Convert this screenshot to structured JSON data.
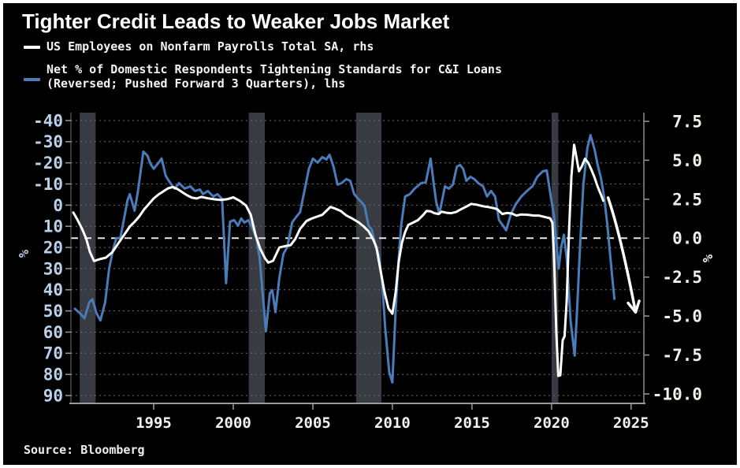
{
  "title": "Tighter Credit Leads to Weaker Jobs Market",
  "source": "Source: Bloomberg",
  "legend": {
    "items": [
      {
        "color": "#ffffff",
        "lines": [
          "US Employees on Nonfarm Payrolls Total SA, rhs"
        ]
      },
      {
        "color": "#4a7cba",
        "lines": [
          "Net % of Domestic Respondents Tightening Standards for C&I Loans",
          "(Reversed; Pushed Forward 3 Quarters), lhs"
        ]
      }
    ]
  },
  "chart_data": {
    "type": "line",
    "title": "Tighter Credit Leads to Weaker Jobs Market",
    "background_color": "#000000",
    "band_color": "#383b41",
    "grid_color": "#6b6b6b",
    "x_axis": {
      "range": [
        1989.8,
        2025.8
      ],
      "ticks": [
        1995,
        2000,
        2005,
        2010,
        2015,
        2020,
        2025
      ],
      "tick_color": "#f2f2f2"
    },
    "left_axis": {
      "label": "%",
      "reversed": true,
      "ticks": [
        -40,
        -30,
        -20,
        -10,
        0,
        10,
        20,
        30,
        40,
        50,
        60,
        70,
        80,
        90
      ],
      "tick_color": "#b9d0e8"
    },
    "right_axis": {
      "label": "%",
      "ticks": [
        "7.5",
        "5.0",
        "2.5",
        "0.0",
        "-2.5",
        "-5.0",
        "-7.5",
        "-10.0"
      ],
      "tick_color": "#f3f0e8"
    },
    "zero_dashed_line_rhs": 0.0,
    "recession_bands": [
      [
        1990.35,
        1991.35
      ],
      [
        2000.97,
        2001.98
      ],
      [
        2007.72,
        2009.31
      ],
      [
        2020.0,
        2020.42
      ]
    ],
    "series": [
      {
        "name": "Net % of Domestic Respondents Tightening Standards for C&I Loans (Reversed; Pushed Forward 3 Quarters)",
        "axis": "lhs",
        "color": "#4a7cba",
        "width": 3,
        "points": [
          [
            1990.05,
            49
          ],
          [
            1990.35,
            51
          ],
          [
            1990.65,
            53.5
          ],
          [
            1990.95,
            46
          ],
          [
            1991.15,
            44.5
          ],
          [
            1991.4,
            51
          ],
          [
            1991.65,
            54.5
          ],
          [
            1991.95,
            46
          ],
          [
            1992.2,
            30
          ],
          [
            1992.45,
            20.9
          ],
          [
            1992.65,
            15.6
          ],
          [
            1992.9,
            15.6
          ],
          [
            1993.1,
            8
          ],
          [
            1993.35,
            -2.2
          ],
          [
            1993.5,
            -5.2
          ],
          [
            1993.8,
            2.6
          ],
          [
            1994.0,
            -6
          ],
          [
            1994.35,
            -25.3
          ],
          [
            1994.6,
            -23.5
          ],
          [
            1994.8,
            -19.5
          ],
          [
            1995.0,
            -17.2
          ],
          [
            1995.25,
            -19.5
          ],
          [
            1995.5,
            -22.1
          ],
          [
            1995.75,
            -14
          ],
          [
            1995.95,
            -11.5
          ],
          [
            1996.3,
            -7.8
          ],
          [
            1996.6,
            -10.4
          ],
          [
            1996.95,
            -7.8
          ],
          [
            1997.3,
            -8.9
          ],
          [
            1997.6,
            -6.7
          ],
          [
            1997.9,
            -7.4
          ],
          [
            1998.1,
            -5.2
          ],
          [
            1998.4,
            -6.7
          ],
          [
            1998.75,
            -4.1
          ],
          [
            1999.0,
            -5.2
          ],
          [
            1999.3,
            -3.0
          ],
          [
            1999.55,
            36.9
          ],
          [
            1999.8,
            7.8
          ],
          [
            2000.05,
            7.1
          ],
          [
            2000.3,
            9.7
          ],
          [
            2000.5,
            6.3
          ],
          [
            2000.7,
            8.2
          ],
          [
            2000.95,
            7.1
          ],
          [
            2001.2,
            10.8
          ],
          [
            2001.45,
            15.6
          ],
          [
            2001.65,
            24.6
          ],
          [
            2001.85,
            41.7
          ],
          [
            2002.05,
            59.6
          ],
          [
            2002.3,
            41.7
          ],
          [
            2002.45,
            40.2
          ],
          [
            2002.65,
            50.6
          ],
          [
            2002.9,
            34.3
          ],
          [
            2003.15,
            23.1
          ],
          [
            2003.4,
            19.7
          ],
          [
            2003.7,
            8.2
          ],
          [
            2003.95,
            5.6
          ],
          [
            2004.2,
            3.3
          ],
          [
            2004.5,
            -7.8
          ],
          [
            2004.75,
            -17.1
          ],
          [
            2005.0,
            -22.0
          ],
          [
            2005.3,
            -20.1
          ],
          [
            2005.6,
            -22.7
          ],
          [
            2005.85,
            -21.6
          ],
          [
            2006.05,
            -23.8
          ],
          [
            2006.3,
            -18.2
          ],
          [
            2006.55,
            -9.7
          ],
          [
            2006.8,
            -10.4
          ],
          [
            2007.1,
            -12.3
          ],
          [
            2007.35,
            -11.5
          ],
          [
            2007.6,
            -5.2
          ],
          [
            2007.85,
            -3.0
          ],
          [
            2008.05,
            -1.5
          ],
          [
            2008.25,
            0.4
          ],
          [
            2008.5,
            9.7
          ],
          [
            2008.7,
            11.5
          ],
          [
            2008.95,
            19.4
          ],
          [
            2009.15,
            23.8
          ],
          [
            2009.35,
            35.8
          ],
          [
            2009.55,
            58.1
          ],
          [
            2009.8,
            79.0
          ],
          [
            2010.0,
            83.8
          ],
          [
            2010.2,
            50
          ],
          [
            2010.35,
            30
          ],
          [
            2010.55,
            9.7
          ],
          [
            2010.8,
            -4.1
          ],
          [
            2011.1,
            -5.2
          ],
          [
            2011.4,
            -7.8
          ],
          [
            2011.8,
            -10.4
          ],
          [
            2012.1,
            -10.8
          ],
          [
            2012.4,
            -22.0
          ],
          [
            2012.6,
            -10
          ],
          [
            2012.75,
            -1.5
          ],
          [
            2012.95,
            4.1
          ],
          [
            2013.3,
            -8.9
          ],
          [
            2013.55,
            -7.8
          ],
          [
            2013.8,
            -9.7
          ],
          [
            2014.05,
            -18.2
          ],
          [
            2014.25,
            -19.0
          ],
          [
            2014.45,
            -17.1
          ],
          [
            2014.65,
            -11.5
          ],
          [
            2014.9,
            -13.4
          ],
          [
            2015.15,
            -12.3
          ],
          [
            2015.4,
            -10.4
          ],
          [
            2015.7,
            -8.9
          ],
          [
            2015.95,
            -4.1
          ],
          [
            2016.2,
            -6.7
          ],
          [
            2016.45,
            -4.1
          ],
          [
            2016.7,
            7.1
          ],
          [
            2016.95,
            9.7
          ],
          [
            2017.15,
            11.9
          ],
          [
            2017.45,
            4.1
          ],
          [
            2017.75,
            -0.4
          ],
          [
            2018.1,
            -4.1
          ],
          [
            2018.45,
            -6.7
          ],
          [
            2018.8,
            -8.9
          ],
          [
            2019.1,
            -13.4
          ],
          [
            2019.45,
            -16.0
          ],
          [
            2019.7,
            -16.4
          ],
          [
            2019.95,
            -4.0
          ],
          [
            2020.15,
            5.0
          ],
          [
            2020.3,
            18.0
          ],
          [
            2020.45,
            30.0
          ],
          [
            2020.6,
            20.0
          ],
          [
            2020.78,
            14.0
          ],
          [
            2020.95,
            25.0
          ],
          [
            2021.2,
            55.0
          ],
          [
            2021.45,
            71.1
          ],
          [
            2021.6,
            50.0
          ],
          [
            2021.8,
            18.0
          ],
          [
            2022.0,
            -10.0
          ],
          [
            2022.25,
            -27.0
          ],
          [
            2022.45,
            -33.1
          ],
          [
            2022.7,
            -26.4
          ],
          [
            2022.9,
            -19.0
          ],
          [
            2023.1,
            -13.0
          ],
          [
            2023.3,
            -4.0
          ],
          [
            2023.5,
            9.0
          ],
          [
            2023.65,
            21.0
          ],
          [
            2023.8,
            33.0
          ],
          [
            2023.95,
            44.3
          ]
        ]
      },
      {
        "name": "US Employees on Nonfarm Payrolls Total SA",
        "axis": "rhs",
        "color": "#ffffff",
        "width": 3,
        "points": [
          [
            1989.95,
            1.65
          ],
          [
            1990.2,
            1.2
          ],
          [
            1990.5,
            0.6
          ],
          [
            1990.75,
            0.0
          ],
          [
            1991.0,
            -0.9
          ],
          [
            1991.25,
            -1.47
          ],
          [
            1991.6,
            -1.35
          ],
          [
            1992.0,
            -1.25
          ],
          [
            1992.4,
            -0.9
          ],
          [
            1992.8,
            -0.3
          ],
          [
            1993.2,
            0.3
          ],
          [
            1993.5,
            0.75
          ],
          [
            1993.8,
            1.05
          ],
          [
            1994.1,
            1.4
          ],
          [
            1994.4,
            1.85
          ],
          [
            1994.7,
            2.2
          ],
          [
            1995.0,
            2.55
          ],
          [
            1995.3,
            2.8
          ],
          [
            1995.6,
            3.0
          ],
          [
            1995.9,
            3.2
          ],
          [
            1996.2,
            3.28
          ],
          [
            1996.5,
            3.15
          ],
          [
            1996.8,
            2.95
          ],
          [
            1997.1,
            2.75
          ],
          [
            1997.4,
            2.6
          ],
          [
            1997.7,
            2.55
          ],
          [
            1998.0,
            2.65
          ],
          [
            1998.4,
            2.56
          ],
          [
            1998.8,
            2.5
          ],
          [
            1999.2,
            2.45
          ],
          [
            1999.6,
            2.5
          ],
          [
            2000.0,
            2.62
          ],
          [
            2000.4,
            2.4
          ],
          [
            2000.8,
            2.1
          ],
          [
            2001.1,
            1.5
          ],
          [
            2001.4,
            0.2
          ],
          [
            2001.7,
            -0.7
          ],
          [
            2002.0,
            -1.3
          ],
          [
            2002.2,
            -1.57
          ],
          [
            2002.5,
            -1.45
          ],
          [
            2002.9,
            -0.6
          ],
          [
            2003.3,
            -0.5
          ],
          [
            2003.6,
            -0.45
          ],
          [
            2003.9,
            -0.05
          ],
          [
            2004.2,
            0.6
          ],
          [
            2004.6,
            1.1
          ],
          [
            2004.9,
            1.25
          ],
          [
            2005.2,
            1.36
          ],
          [
            2005.6,
            1.5
          ],
          [
            2006.1,
            2.0
          ],
          [
            2006.4,
            1.9
          ],
          [
            2006.75,
            1.75
          ],
          [
            2007.1,
            1.46
          ],
          [
            2007.5,
            1.25
          ],
          [
            2007.9,
            1.0
          ],
          [
            2008.2,
            0.75
          ],
          [
            2008.5,
            0.45
          ],
          [
            2008.8,
            -0.1
          ],
          [
            2009.0,
            -0.6
          ],
          [
            2009.2,
            -1.77
          ],
          [
            2009.5,
            -3.43
          ],
          [
            2009.75,
            -4.5
          ],
          [
            2010.0,
            -4.85
          ],
          [
            2010.2,
            -3.5
          ],
          [
            2010.4,
            -1.5
          ],
          [
            2010.6,
            -0.3
          ],
          [
            2010.8,
            0.4
          ],
          [
            2011.0,
            0.85
          ],
          [
            2011.3,
            1.0
          ],
          [
            2011.6,
            1.15
          ],
          [
            2011.9,
            1.45
          ],
          [
            2012.15,
            1.75
          ],
          [
            2012.4,
            1.72
          ],
          [
            2012.65,
            1.6
          ],
          [
            2012.9,
            1.55
          ],
          [
            2013.1,
            1.7
          ],
          [
            2013.4,
            1.63
          ],
          [
            2013.7,
            1.6
          ],
          [
            2014.0,
            1.68
          ],
          [
            2014.3,
            1.85
          ],
          [
            2014.6,
            2.0
          ],
          [
            2014.95,
            2.2
          ],
          [
            2015.3,
            2.15
          ],
          [
            2015.7,
            2.05
          ],
          [
            2016.0,
            2.0
          ],
          [
            2016.35,
            1.93
          ],
          [
            2016.6,
            1.85
          ],
          [
            2016.9,
            1.55
          ],
          [
            2017.2,
            1.62
          ],
          [
            2017.5,
            1.58
          ],
          [
            2017.8,
            1.45
          ],
          [
            2018.1,
            1.52
          ],
          [
            2018.5,
            1.5
          ],
          [
            2018.9,
            1.45
          ],
          [
            2019.2,
            1.45
          ],
          [
            2019.6,
            1.35
          ],
          [
            2019.9,
            1.28
          ],
          [
            2020.05,
            1.0
          ],
          [
            2020.15,
            -1.0
          ],
          [
            2020.3,
            -6.0
          ],
          [
            2020.42,
            -8.84
          ],
          [
            2020.55,
            -8.8
          ],
          [
            2020.7,
            -6.55
          ],
          [
            2020.82,
            -6.3
          ],
          [
            2020.95,
            -4.0
          ],
          [
            2021.1,
            0.5
          ],
          [
            2021.25,
            4.0
          ],
          [
            2021.42,
            6.0
          ],
          [
            2021.58,
            5.1
          ],
          [
            2021.72,
            4.3
          ],
          [
            2021.9,
            4.6
          ],
          [
            2022.1,
            5.1
          ],
          [
            2022.3,
            4.85
          ],
          [
            2022.5,
            4.4
          ],
          [
            2022.7,
            3.9
          ],
          [
            2022.9,
            3.3
          ],
          [
            2023.1,
            2.8
          ],
          [
            2023.25,
            2.4
          ]
        ]
      }
    ],
    "annotation_arrow": {
      "axis": "rhs",
      "color": "#ffffff",
      "start": [
        2023.55,
        2.6
      ],
      "control": [
        2024.35,
        0.2
      ],
      "end": [
        2025.28,
        -4.75
      ]
    }
  }
}
